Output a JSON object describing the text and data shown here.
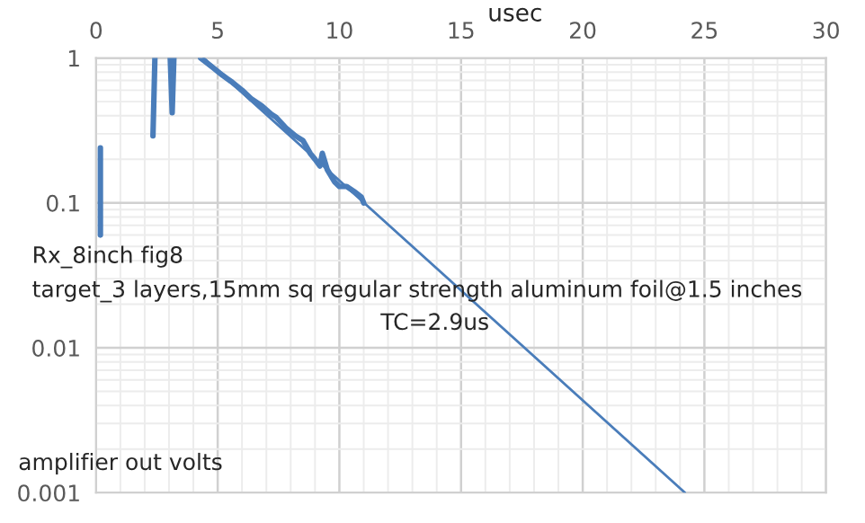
{
  "chart_data": {
    "type": "line",
    "xlabel": "usec",
    "ylabel": "amplifier out volts",
    "annotations": [
      "Rx_8inch fig8",
      "target_3 layers,15mm sq regular strength aluminum foil@1.5 inches",
      "TC=2.9us"
    ],
    "series": [
      {
        "color": "#4a7dba",
        "x": [
          0.18,
          0.18,
          null,
          2.34,
          2.42,
          null,
          3.05,
          3.13,
          3.2,
          null,
          4.3,
          4.8,
          5.2,
          5.6,
          6.0,
          6.4,
          6.8,
          7.2,
          7.4,
          7.8,
          8.2,
          8.5,
          8.8,
          9.0,
          9.2,
          9.3,
          9.5,
          9.8,
          10.0,
          10.3,
          10.6,
          10.9,
          11.0
        ],
        "values": [
          0.24,
          0.06,
          null,
          0.29,
          1,
          null,
          1,
          0.42,
          1,
          null,
          1,
          0.86,
          0.76,
          0.68,
          0.6,
          0.52,
          0.47,
          0.41,
          0.39,
          0.33,
          0.29,
          0.27,
          0.22,
          0.2,
          0.18,
          0.22,
          0.17,
          0.14,
          0.13,
          0.13,
          0.12,
          0.11,
          0.1
        ]
      },
      {
        "color": "#4a7dba",
        "x": [
          4.43,
          24.2
        ],
        "values": [
          1,
          0.001
        ]
      }
    ],
    "log": "y",
    "xlim": [
      0,
      30
    ],
    "xticks": [
      0,
      5,
      10,
      15,
      20,
      25,
      30
    ],
    "ylim": [
      0.001,
      1
    ],
    "yticks": [
      {
        "value": 0.001,
        "label": "0.001"
      },
      {
        "value": 0.01,
        "label": "0.01"
      },
      {
        "value": 0.1,
        "label": "0.1"
      },
      {
        "value": 1,
        "label": "1"
      }
    ],
    "grid": true,
    "line_style": "solid",
    "marker": "none"
  }
}
